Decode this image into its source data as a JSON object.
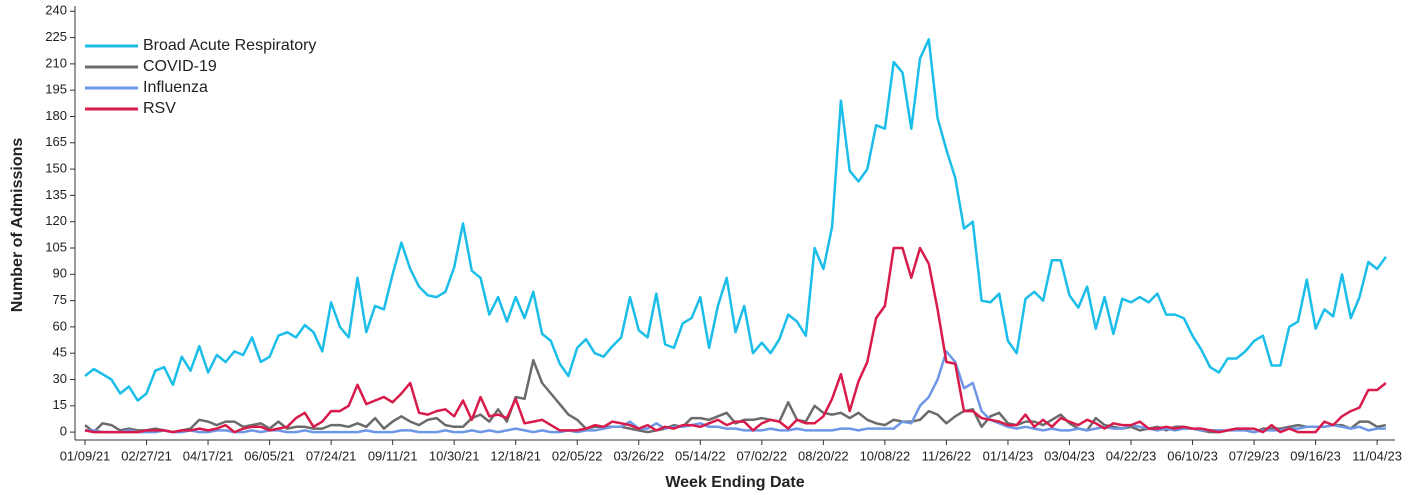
{
  "chart_data": {
    "type": "line",
    "x_label": "Week Ending Date",
    "y_label": "Number of Admissions",
    "categories": [
      "01/09/21",
      null,
      null,
      null,
      null,
      null,
      null,
      "02/27/21",
      null,
      null,
      null,
      null,
      null,
      null,
      "04/17/21",
      null,
      null,
      null,
      null,
      null,
      null,
      "06/05/21",
      null,
      null,
      null,
      null,
      null,
      null,
      "07/24/21",
      null,
      null,
      null,
      null,
      null,
      null,
      "09/11/21",
      null,
      null,
      null,
      null,
      null,
      null,
      "10/30/21",
      null,
      null,
      null,
      null,
      null,
      null,
      "12/18/21",
      null,
      null,
      null,
      null,
      null,
      null,
      "02/05/22",
      null,
      null,
      null,
      null,
      null,
      null,
      "03/26/22",
      null,
      null,
      null,
      null,
      null,
      null,
      "05/14/22",
      null,
      null,
      null,
      null,
      null,
      null,
      "07/02/22",
      null,
      null,
      null,
      null,
      null,
      null,
      "08/20/22",
      null,
      null,
      null,
      null,
      null,
      null,
      "10/08/22",
      null,
      null,
      null,
      null,
      null,
      null,
      "11/26/22",
      null,
      null,
      null,
      null,
      null,
      null,
      "01/14/23",
      null,
      null,
      null,
      null,
      null,
      null,
      "03/04/23",
      null,
      null,
      null,
      null,
      null,
      null,
      "04/22/23",
      null,
      null,
      null,
      null,
      null,
      null,
      "06/10/23",
      null,
      null,
      null,
      null,
      null,
      null,
      "07/29/23",
      null,
      null,
      null,
      null,
      null,
      null,
      "09/16/23",
      null,
      null,
      null,
      null,
      null,
      null,
      "11/04/23",
      null
    ],
    "series": [
      {
        "name": "Broad Acute Respiratory",
        "color": "#1bbde9",
        "values": [
          32,
          36,
          33,
          30,
          22,
          26,
          18,
          22,
          35,
          37,
          27,
          43,
          35,
          49,
          34,
          44,
          40,
          46,
          44,
          54,
          40,
          43,
          55,
          57,
          54,
          61,
          57,
          46,
          74,
          60,
          54,
          88,
          57,
          72,
          70,
          90,
          108,
          93,
          83,
          78,
          77,
          80,
          94,
          119,
          92,
          88,
          67,
          77,
          63,
          77,
          65,
          80,
          56,
          52,
          39,
          32,
          48,
          53,
          45,
          43,
          49,
          54,
          77,
          58,
          54,
          79,
          50,
          48,
          62,
          65,
          77,
          48,
          72,
          88,
          57,
          72,
          45,
          51,
          45,
          53,
          67,
          63,
          55,
          105,
          93,
          117,
          189,
          149,
          143,
          150,
          175,
          173,
          211,
          205,
          173,
          213,
          224,
          179,
          161,
          145,
          116,
          120,
          75,
          74,
          79,
          52,
          45,
          76,
          80,
          75,
          98,
          98,
          78,
          71,
          83,
          59,
          77,
          56,
          76,
          74,
          77,
          74,
          79,
          67,
          67,
          65,
          55,
          47,
          37,
          34,
          42,
          42,
          46,
          52,
          55,
          38,
          38,
          60,
          63,
          87,
          59,
          70,
          66,
          90,
          65,
          77,
          97,
          93,
          100
        ]
      },
      {
        "name": "COVID-19",
        "color": "#6b6b6b",
        "values": [
          4,
          0,
          5,
          4,
          1,
          2,
          1,
          1,
          2,
          1,
          0,
          1,
          2,
          7,
          6,
          4,
          6,
          6,
          3,
          4,
          5,
          2,
          6,
          2,
          3,
          3,
          2,
          2,
          4,
          4,
          3,
          5,
          3,
          8,
          2,
          6,
          9,
          6,
          4,
          7,
          8,
          4,
          3,
          3,
          8,
          10,
          6,
          13,
          6,
          20,
          19,
          41,
          28,
          22,
          16,
          10,
          7,
          2,
          3,
          3,
          3,
          3,
          2,
          1,
          0,
          1,
          2,
          4,
          3,
          8,
          8,
          7,
          9,
          11,
          5,
          7,
          7,
          8,
          7,
          6,
          17,
          7,
          6,
          15,
          11,
          10,
          11,
          8,
          11,
          7,
          5,
          4,
          7,
          6,
          6,
          7,
          12,
          10,
          5,
          9,
          12,
          13,
          3,
          9,
          11,
          5,
          4,
          6,
          6,
          4,
          7,
          10,
          5,
          2,
          1,
          8,
          4,
          3,
          2,
          3,
          1,
          2,
          3,
          1,
          3,
          3,
          2,
          1,
          0,
          0,
          1,
          2,
          1,
          0,
          2,
          2,
          2,
          3,
          4,
          3,
          3,
          3,
          4,
          4,
          2,
          6,
          6,
          3,
          4
        ]
      },
      {
        "name": "Influenza",
        "color": "#6e97e6",
        "values": [
          1,
          1,
          0,
          0,
          0,
          1,
          0,
          0,
          0,
          1,
          0,
          0,
          1,
          0,
          0,
          1,
          1,
          0,
          0,
          1,
          0,
          1,
          1,
          0,
          0,
          1,
          0,
          0,
          0,
          0,
          0,
          0,
          1,
          0,
          0,
          0,
          1,
          1,
          0,
          0,
          0,
          1,
          0,
          0,
          1,
          0,
          1,
          0,
          1,
          2,
          1,
          0,
          1,
          0,
          0,
          1,
          0,
          1,
          1,
          2,
          3,
          3,
          6,
          2,
          2,
          5,
          2,
          3,
          3,
          4,
          5,
          3,
          3,
          2,
          2,
          1,
          1,
          1,
          2,
          1,
          1,
          2,
          1,
          1,
          1,
          1,
          2,
          2,
          1,
          2,
          2,
          2,
          2,
          6,
          5,
          15,
          20,
          30,
          46,
          40,
          25,
          28,
          12,
          7,
          5,
          3,
          2,
          3,
          2,
          1,
          2,
          1,
          1,
          2,
          1,
          2,
          3,
          2,
          2,
          4,
          3,
          2,
          1,
          2,
          1,
          2,
          2,
          1,
          1,
          1,
          1,
          1,
          1,
          0,
          1,
          1,
          1,
          2,
          2,
          3,
          3,
          3,
          4,
          3,
          2,
          3,
          1,
          2,
          2
        ]
      },
      {
        "name": "RSV",
        "color": "#d81b4a",
        "values": [
          1,
          0,
          0,
          0,
          0,
          0,
          0,
          1,
          1,
          1,
          0,
          1,
          1,
          2,
          1,
          2,
          4,
          0,
          2,
          3,
          3,
          1,
          2,
          3,
          8,
          11,
          3,
          6,
          12,
          12,
          15,
          27,
          16,
          18,
          20,
          17,
          22,
          28,
          11,
          10,
          12,
          13,
          9,
          18,
          7,
          20,
          9,
          10,
          8,
          19,
          5,
          6,
          7,
          4,
          1,
          1,
          1,
          2,
          4,
          3,
          6,
          5,
          4,
          2,
          4,
          1,
          3,
          2,
          4,
          4,
          3,
          5,
          7,
          4,
          6,
          6,
          1,
          5,
          7,
          6,
          2,
          7,
          5,
          5,
          9,
          19,
          33,
          12,
          29,
          40,
          65,
          72,
          105,
          105,
          88,
          105,
          96,
          70,
          40,
          39,
          12,
          12,
          8,
          7,
          6,
          4,
          4,
          10,
          3,
          7,
          3,
          8,
          6,
          4,
          7,
          5,
          2,
          5,
          4,
          4,
          6,
          2,
          2,
          3,
          2,
          3,
          2,
          2,
          1,
          0,
          1,
          2,
          2,
          2,
          0,
          4,
          0,
          2,
          0,
          0,
          0,
          6,
          4,
          9,
          12,
          14,
          24,
          24,
          28
        ]
      }
    ],
    "ylim": [
      -4.5,
      243
    ],
    "yticks": [
      0,
      15,
      30,
      45,
      60,
      75,
      90,
      105,
      120,
      135,
      150,
      165,
      180,
      195,
      210,
      225,
      240
    ],
    "legend": "top-left"
  }
}
